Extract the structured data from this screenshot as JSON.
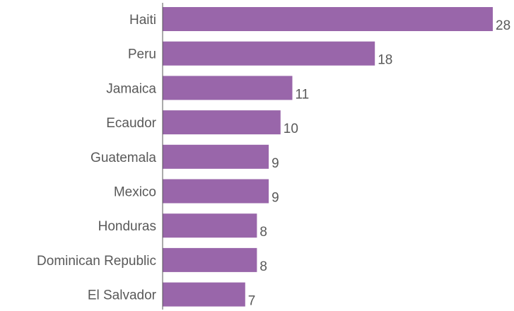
{
  "chart_data": {
    "type": "bar",
    "orientation": "horizontal",
    "categories": [
      "Haiti",
      "Peru",
      "Jamaica",
      "Ecaudor",
      "Guatemala",
      "Mexico",
      "Honduras",
      "Dominican Republic",
      "El Salvador"
    ],
    "values": [
      28,
      18,
      11,
      10,
      9,
      9,
      8,
      8,
      7
    ],
    "title": "",
    "xlabel": "",
    "ylabel": "",
    "xlim": [
      0,
      28
    ],
    "grid": false,
    "legend": "none",
    "bar_color": "#9966AA",
    "axis_color": "#555555",
    "text_color": "#595959"
  }
}
